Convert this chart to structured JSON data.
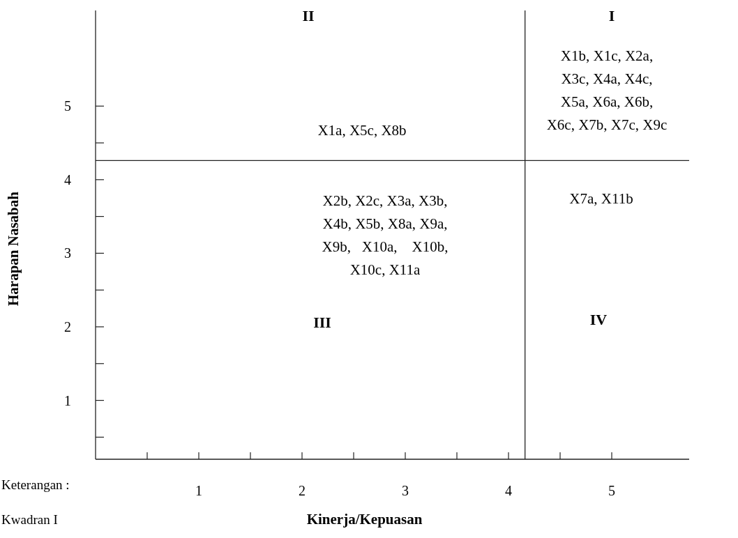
{
  "chart_data": {
    "type": "scatter",
    "xlabel": "Kinerja/Kepuasan",
    "ylabel": "Harapan Nasabah",
    "xlim": [
      0,
      5.75
    ],
    "ylim": [
      0.2,
      6.3
    ],
    "xticks": [
      {
        "value": 0.5,
        "label": null
      },
      1,
      {
        "value": 1.5,
        "label": null
      },
      2,
      {
        "value": 2.5,
        "label": null
      },
      3,
      {
        "value": 3.5,
        "label": null
      },
      4,
      {
        "value": 4.5,
        "label": null
      },
      5
    ],
    "yticks": [
      {
        "value": 0.5,
        "label": null
      },
      1,
      {
        "value": 1.5,
        "label": null
      },
      2,
      {
        "value": 2.5,
        "label": null
      },
      3,
      {
        "value": 3.5,
        "label": null
      },
      4,
      {
        "value": 4.5,
        "label": null
      },
      5
    ],
    "ref_lines": [
      {
        "axis": "x",
        "value": 4.16
      },
      {
        "axis": "y",
        "value": 4.26
      }
    ],
    "annotations": [
      "II",
      "I",
      "X1a, X5c, X8b",
      "X1b, X1c, X2a,\nX3c, X4a, X4c,\nX5a, X6a, X6b,\nX6c, X7b, X7c, X9c",
      "X2b, X2c, X3a, X3b,\nX4b, X5b, X8a, X9a,\nX9b,   X10a,    X10b,\nX10c, X11a",
      "X7a, X11b",
      "III",
      "IV",
      "Keterangan :",
      "Kwadran I"
    ]
  }
}
